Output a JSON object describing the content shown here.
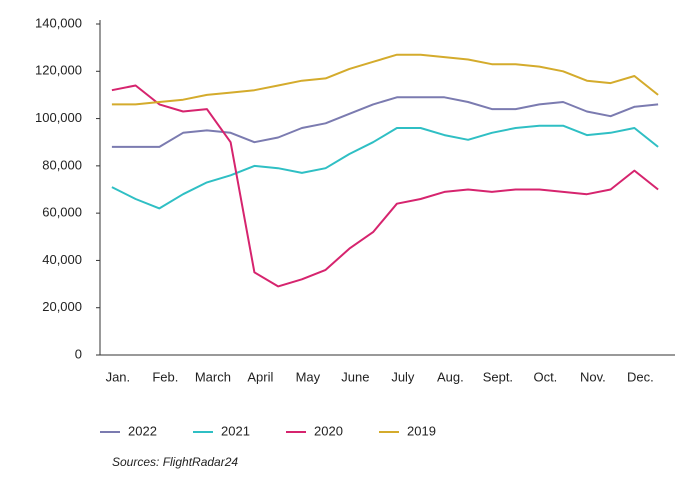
{
  "chart_data": {
    "type": "line",
    "categories": [
      "Jan.",
      null,
      "Feb.",
      null,
      "March",
      null,
      "April",
      null,
      "May",
      null,
      "June",
      null,
      "July",
      null,
      "Aug.",
      null,
      "Sept.",
      null,
      "Oct.",
      null,
      "Nov.",
      null,
      "Dec.",
      null
    ],
    "series": [
      {
        "name": "2022",
        "color": "#7b7bb0",
        "values": [
          88000,
          88000,
          88000,
          94000,
          95000,
          94000,
          90000,
          92000,
          96000,
          98000,
          102000,
          106000,
          109000,
          109000,
          109000,
          107000,
          104000,
          104000,
          106000,
          107000,
          103000,
          101000,
          105000,
          106000
        ]
      },
      {
        "name": "2021",
        "color": "#2fbfc4",
        "values": [
          71000,
          66000,
          62000,
          68000,
          73000,
          76000,
          80000,
          79000,
          77000,
          79000,
          85000,
          90000,
          96000,
          96000,
          93000,
          91000,
          94000,
          96000,
          97000,
          97000,
          93000,
          94000,
          96000,
          88000
        ]
      },
      {
        "name": "2020",
        "color": "#d6246e",
        "values": [
          112000,
          114000,
          106000,
          103000,
          104000,
          90000,
          35000,
          29000,
          32000,
          36000,
          45000,
          52000,
          64000,
          66000,
          69000,
          70000,
          69000,
          70000,
          70000,
          69000,
          68000,
          70000,
          78000,
          70000
        ]
      },
      {
        "name": "2019",
        "color": "#d4ab2c",
        "values": [
          106000,
          106000,
          107000,
          108000,
          110000,
          111000,
          112000,
          114000,
          116000,
          117000,
          121000,
          124000,
          127000,
          127000,
          126000,
          125000,
          123000,
          123000,
          122000,
          120000,
          116000,
          115000,
          118000,
          110000
        ]
      }
    ],
    "ylim": [
      0,
      140000
    ],
    "yticks": [
      0,
      {
        "value": 20000,
        "label": "20,000"
      },
      {
        "value": 40000,
        "label": "40,000"
      },
      {
        "value": 60000,
        "label": "60,000"
      },
      {
        "value": 80000,
        "label": "80,000"
      },
      {
        "value": 100000,
        "label": "100,000"
      },
      {
        "value": 120000,
        "label": "120,000"
      },
      {
        "value": 140000,
        "label": "140,000"
      }
    ],
    "source": "Sources: FlightRadar24"
  }
}
